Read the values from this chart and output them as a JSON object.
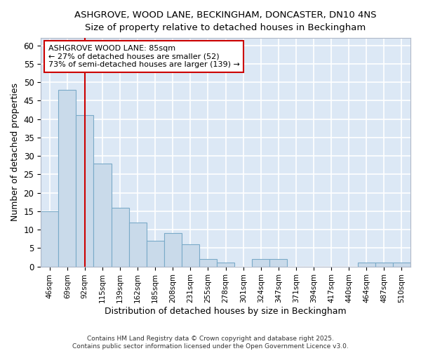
{
  "title": "ASHGROVE, WOOD LANE, BECKINGHAM, DONCASTER, DN10 4NS",
  "subtitle": "Size of property relative to detached houses in Beckingham",
  "xlabel": "Distribution of detached houses by size in Beckingham",
  "ylabel": "Number of detached properties",
  "bar_color": "#c9daea",
  "bar_edge_color": "#7aaac8",
  "background_color": "#dce8f5",
  "grid_color": "#ffffff",
  "fig_background": "#ffffff",
  "categories": [
    "46sqm",
    "69sqm",
    "92sqm",
    "115sqm",
    "139sqm",
    "162sqm",
    "185sqm",
    "208sqm",
    "231sqm",
    "255sqm",
    "278sqm",
    "301sqm",
    "324sqm",
    "347sqm",
    "371sqm",
    "394sqm",
    "417sqm",
    "440sqm",
    "464sqm",
    "487sqm",
    "510sqm"
  ],
  "values": [
    15,
    48,
    41,
    28,
    16,
    12,
    7,
    9,
    6,
    2,
    1,
    0,
    2,
    2,
    0,
    0,
    0,
    0,
    1,
    1,
    1
  ],
  "ylim": [
    0,
    62
  ],
  "yticks": [
    0,
    5,
    10,
    15,
    20,
    25,
    30,
    35,
    40,
    45,
    50,
    55,
    60
  ],
  "vline_x": 2,
  "vline_color": "#cc0000",
  "annotation_text_line1": "ASHGROVE WOOD LANE: 85sqm",
  "annotation_text_line2": "← 27% of detached houses are smaller (52)",
  "annotation_text_line3": "73% of semi-detached houses are larger (139) →",
  "annotation_box_facecolor": "#ffffff",
  "annotation_box_edgecolor": "#cc0000",
  "footer": "Contains HM Land Registry data © Crown copyright and database right 2025.\nContains public sector information licensed under the Open Government Licence v3.0."
}
